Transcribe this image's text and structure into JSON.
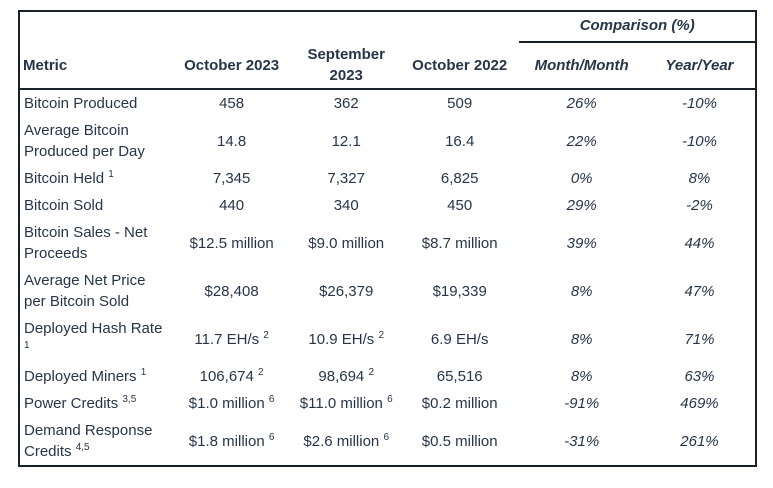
{
  "colors": {
    "text": "#273549",
    "border": "#1a202a",
    "background": "#ffffff"
  },
  "chart_data": {
    "type": "table",
    "title": "",
    "comparison_header": "Comparison (%)",
    "columns": [
      "Metric",
      "October 2023",
      "September 2023",
      "October 2022",
      "Month/Month",
      "Year/Year"
    ],
    "rows": [
      {
        "cells": [
          {
            "t": "Bitcoin Produced"
          },
          {
            "t": "458"
          },
          {
            "t": "362"
          },
          {
            "t": "509"
          },
          {
            "t": "26%"
          },
          {
            "t": "-10%"
          }
        ]
      },
      {
        "cells": [
          {
            "t": "Average Bitcoin Produced per Day"
          },
          {
            "t": "14.8"
          },
          {
            "t": "12.1"
          },
          {
            "t": "16.4"
          },
          {
            "t": "22%"
          },
          {
            "t": "-10%"
          }
        ]
      },
      {
        "cells": [
          {
            "t": "Bitcoin Held",
            "sup": "1"
          },
          {
            "t": "7,345"
          },
          {
            "t": "7,327"
          },
          {
            "t": "6,825"
          },
          {
            "t": "0%"
          },
          {
            "t": "8%"
          }
        ]
      },
      {
        "cells": [
          {
            "t": "Bitcoin Sold"
          },
          {
            "t": "440"
          },
          {
            "t": "340"
          },
          {
            "t": "450"
          },
          {
            "t": "29%"
          },
          {
            "t": "-2%"
          }
        ]
      },
      {
        "cells": [
          {
            "t": "Bitcoin Sales - Net Proceeds"
          },
          {
            "t": "$12.5 million"
          },
          {
            "t": "$9.0 million"
          },
          {
            "t": "$8.7 million"
          },
          {
            "t": "39%"
          },
          {
            "t": "44%"
          }
        ]
      },
      {
        "cells": [
          {
            "t": "Average Net Price per Bitcoin Sold"
          },
          {
            "t": "$28,408"
          },
          {
            "t": "$26,379"
          },
          {
            "t": "$19,339"
          },
          {
            "t": "8%"
          },
          {
            "t": "47%"
          }
        ]
      },
      {
        "cells": [
          {
            "t": "Deployed Hash Rate",
            "sup": "1"
          },
          {
            "t": "11.7 EH/s",
            "sup": "2"
          },
          {
            "t": "10.9 EH/s",
            "sup": "2"
          },
          {
            "t": "6.9 EH/s"
          },
          {
            "t": "8%"
          },
          {
            "t": "71%"
          }
        ]
      },
      {
        "cells": [
          {
            "t": "Deployed Miners",
            "sup": "1"
          },
          {
            "t": "106,674",
            "sup": "2"
          },
          {
            "t": "98,694",
            "sup": "2"
          },
          {
            "t": "65,516"
          },
          {
            "t": "8%"
          },
          {
            "t": "63%"
          }
        ]
      },
      {
        "cells": [
          {
            "t": "Power Credits",
            "sup": "3,5"
          },
          {
            "t": "$1.0 million",
            "sup": "6"
          },
          {
            "t": "$11.0 million",
            "sup": "6"
          },
          {
            "t": "$0.2 million"
          },
          {
            "t": "-91%"
          },
          {
            "t": "469%"
          }
        ]
      },
      {
        "cells": [
          {
            "t": "Demand Response Credits",
            "sup": "4,5"
          },
          {
            "t": "$1.8 million",
            "sup": "6"
          },
          {
            "t": "$2.6 million",
            "sup": "6"
          },
          {
            "t": "$0.5 million"
          },
          {
            "t": "-31%"
          },
          {
            "t": "261%"
          }
        ]
      }
    ]
  }
}
